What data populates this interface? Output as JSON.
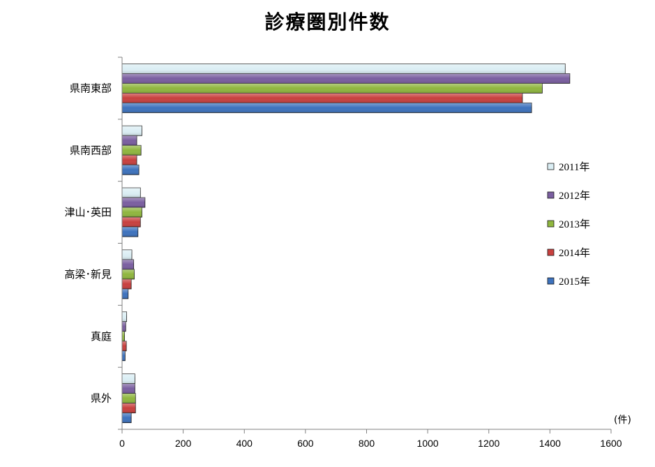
{
  "chart_data": {
    "type": "bar",
    "orientation": "horizontal",
    "title": "診療圏別件数",
    "categories": [
      "県南東部",
      "県南西部",
      "津山･英田",
      "高梁･新見",
      "真庭",
      "県外"
    ],
    "series": [
      {
        "name": "2011年",
        "color": "#dbeef4",
        "values": [
          1450,
          65,
          60,
          32,
          15,
          42
        ]
      },
      {
        "name": "2012年",
        "color": "#7a5ea0",
        "values": [
          1465,
          48,
          75,
          38,
          12,
          42
        ]
      },
      {
        "name": "2013年",
        "color": "#8fb63e",
        "values": [
          1375,
          62,
          65,
          40,
          8,
          44
        ]
      },
      {
        "name": "2014年",
        "color": "#c8403e",
        "values": [
          1310,
          48,
          60,
          30,
          14,
          44
        ]
      },
      {
        "name": "2015年",
        "color": "#3d72bd",
        "values": [
          1340,
          55,
          52,
          20,
          10,
          30
        ]
      }
    ],
    "xlim": [
      0,
      1600
    ],
    "xticks": [
      0,
      200,
      400,
      600,
      800,
      1000,
      1200,
      1400,
      1600
    ],
    "unit_label": "(件)",
    "legend_position": "right",
    "grid": false
  }
}
